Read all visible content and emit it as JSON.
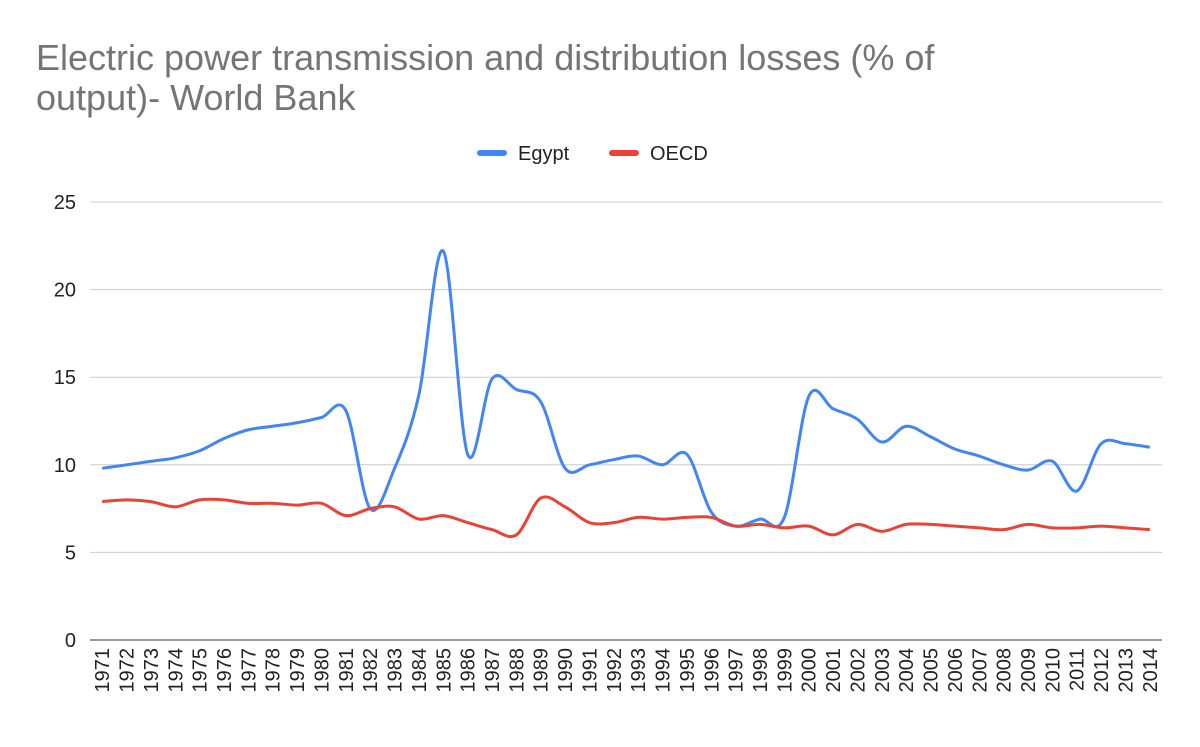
{
  "chart_data": {
    "type": "line",
    "title": "Electric power transmission and distribution losses (% of output)- World Bank",
    "categories": [
      "1971",
      "1972",
      "1973",
      "1974",
      "1975",
      "1976",
      "1977",
      "1978",
      "1979",
      "1980",
      "1981",
      "1982",
      "1983",
      "1984",
      "1985",
      "1986",
      "1987",
      "1988",
      "1989",
      "1990",
      "1991",
      "1992",
      "1993",
      "1994",
      "1995",
      "1996",
      "1997",
      "1998",
      "1999",
      "2000",
      "2001",
      "2002",
      "2003",
      "2004",
      "2005",
      "2006",
      "2007",
      "2008",
      "2009",
      "2010",
      "2011",
      "2012",
      "2013",
      "2014"
    ],
    "series": [
      {
        "name": "Egypt",
        "color": "#4285f4",
        "values": [
          9.8,
          10.0,
          10.2,
          10.4,
          10.8,
          11.5,
          12.0,
          12.2,
          12.4,
          12.7,
          13.1,
          7.5,
          9.8,
          14.0,
          22.2,
          10.6,
          14.9,
          14.3,
          13.6,
          9.8,
          10.0,
          10.3,
          10.5,
          10.0,
          10.6,
          7.3,
          6.5,
          6.9,
          7.0,
          13.9,
          13.2,
          12.6,
          11.3,
          12.2,
          11.6,
          10.9,
          10.5,
          10.0,
          9.7,
          10.2,
          8.5,
          11.2,
          11.2,
          11.0
        ]
      },
      {
        "name": "OECD",
        "color": "#ea4335",
        "values": [
          7.9,
          8.0,
          7.9,
          7.6,
          8.0,
          8.0,
          7.8,
          7.8,
          7.7,
          7.8,
          7.1,
          7.5,
          7.6,
          6.9,
          7.1,
          6.7,
          6.3,
          6.0,
          8.1,
          7.6,
          6.7,
          6.7,
          7.0,
          6.9,
          7.0,
          7.0,
          6.5,
          6.6,
          6.4,
          6.5,
          6.0,
          6.6,
          6.2,
          6.6,
          6.6,
          6.5,
          6.4,
          6.3,
          6.6,
          6.4,
          6.4,
          6.5,
          6.4,
          6.3
        ]
      }
    ],
    "ylim": [
      0,
      25
    ],
    "yticks": [
      0,
      5,
      10,
      15,
      20,
      25
    ],
    "grid": true,
    "legend": "top"
  }
}
